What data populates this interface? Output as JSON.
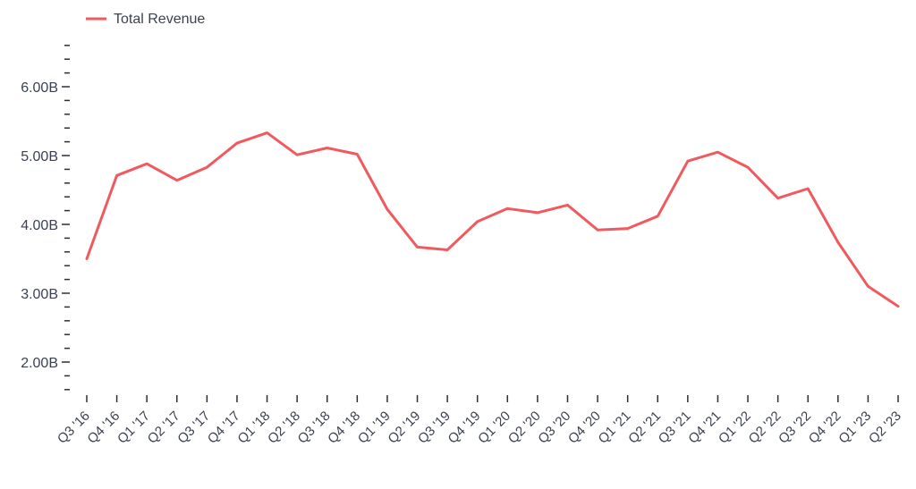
{
  "chart_data": {
    "type": "line",
    "title": "",
    "xlabel": "",
    "ylabel": "",
    "ylim": [
      1.6,
      6.6
    ],
    "y_ticks": [
      "2.00B",
      "3.00B",
      "4.00B",
      "5.00B",
      "6.00B"
    ],
    "categories": [
      "Q3 '16",
      "Q4 '16",
      "Q1 '17",
      "Q2 '17",
      "Q3 '17",
      "Q4 '17",
      "Q1 '18",
      "Q2 '18",
      "Q3 '18",
      "Q4 '18",
      "Q1 '19",
      "Q2 '19",
      "Q3 '19",
      "Q4 '19",
      "Q1 '20",
      "Q2 '20",
      "Q3 '20",
      "Q4 '20",
      "Q1 '21",
      "Q2 '21",
      "Q3 '21",
      "Q4 '21",
      "Q1 '22",
      "Q2 '22",
      "Q3 '22",
      "Q4 '22",
      "Q1 '23",
      "Q2 '23"
    ],
    "series": [
      {
        "name": "Total Revenue",
        "color": "#f05a5f",
        "values": [
          3.5,
          4.71,
          4.88,
          4.64,
          4.83,
          5.18,
          5.33,
          5.01,
          5.11,
          5.02,
          4.22,
          3.67,
          3.63,
          4.04,
          4.23,
          4.17,
          4.28,
          3.92,
          3.94,
          4.12,
          4.92,
          5.05,
          4.83,
          4.38,
          4.52,
          3.74,
          3.1,
          2.81
        ]
      }
    ],
    "legend": "top-left",
    "grid": false
  }
}
